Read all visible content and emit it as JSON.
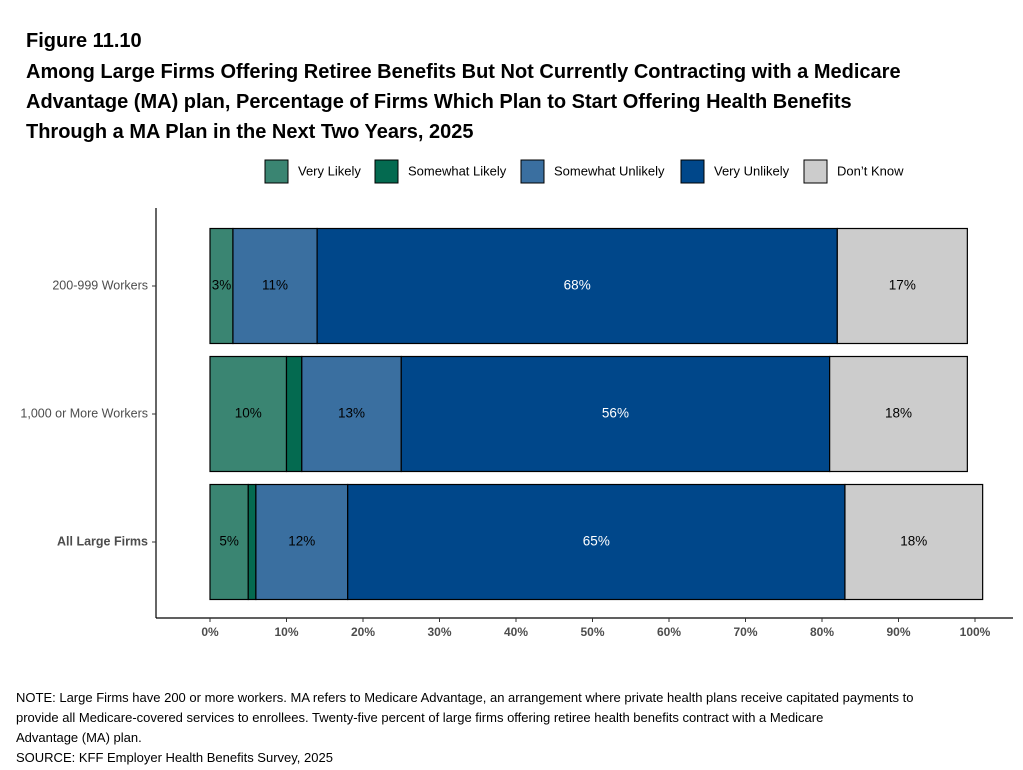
{
  "chart_data": {
    "type": "stacked-bar-horizontal",
    "figure_label": "Figure 11.10",
    "title": [
      "Among Large Firms Offering Retiree Benefits But Not Currently Contracting with a Medicare",
      "Advantage (MA) plan, Percentage of Firms Which Plan to Start Offering Health Benefits",
      "Through a MA Plan in the Next Two Years, 2025"
    ],
    "categories": [
      "200-999 Workers",
      "1,000 or More Workers",
      "All Large Firms"
    ],
    "series": [
      {
        "name": "Very Likely",
        "color": "#3a8572",
        "values": [
          3,
          10,
          5
        ],
        "value_labels": [
          "3%",
          "10%",
          "5%"
        ]
      },
      {
        "name": "Somewhat Likely",
        "color": "#046a50",
        "values": [
          null,
          2,
          1
        ],
        "value_labels": [
          null,
          null,
          null
        ]
      },
      {
        "name": "Somewhat Unlikely",
        "color": "#3a6fa0",
        "values": [
          11,
          13,
          12
        ],
        "value_labels": [
          "11%",
          "13%",
          "12%"
        ]
      },
      {
        "name": "Very Unlikely",
        "color": "#00478a",
        "values": [
          68,
          56,
          65
        ],
        "value_labels": [
          "68%",
          "56%",
          "65%"
        ]
      },
      {
        "name": "Don’t Know",
        "color": "#cccccc",
        "values": [
          17,
          18,
          18
        ],
        "value_labels": [
          "17%",
          "18%",
          "18%"
        ]
      }
    ],
    "xlim": [
      0,
      100
    ],
    "xticks": [
      {
        "value": 0,
        "label": "0%"
      },
      {
        "value": 10,
        "label": "10%"
      },
      {
        "value": 20,
        "label": "20%"
      },
      {
        "value": 30,
        "label": "30%"
      },
      {
        "value": 40,
        "label": "40%"
      },
      {
        "value": 50,
        "label": "50%"
      },
      {
        "value": 60,
        "label": "60%"
      },
      {
        "value": 70,
        "label": "70%"
      },
      {
        "value": 80,
        "label": "80%"
      },
      {
        "value": 90,
        "label": "90%"
      },
      {
        "value": 100,
        "label": "100%"
      }
    ],
    "legend": "top",
    "note": [
      "NOTE: Large Firms have 200 or more workers.  MA refers to Medicare Advantage, an arrangement where private health plans receive capitated payments to",
      "provide all Medicare-covered services to enrollees.  Twenty-five percent of large firms offering retiree health benefits contract with a Medicare",
      "Advantage (MA) plan."
    ],
    "source": "SOURCE: KFF Employer Health Benefits Survey, 2025"
  }
}
